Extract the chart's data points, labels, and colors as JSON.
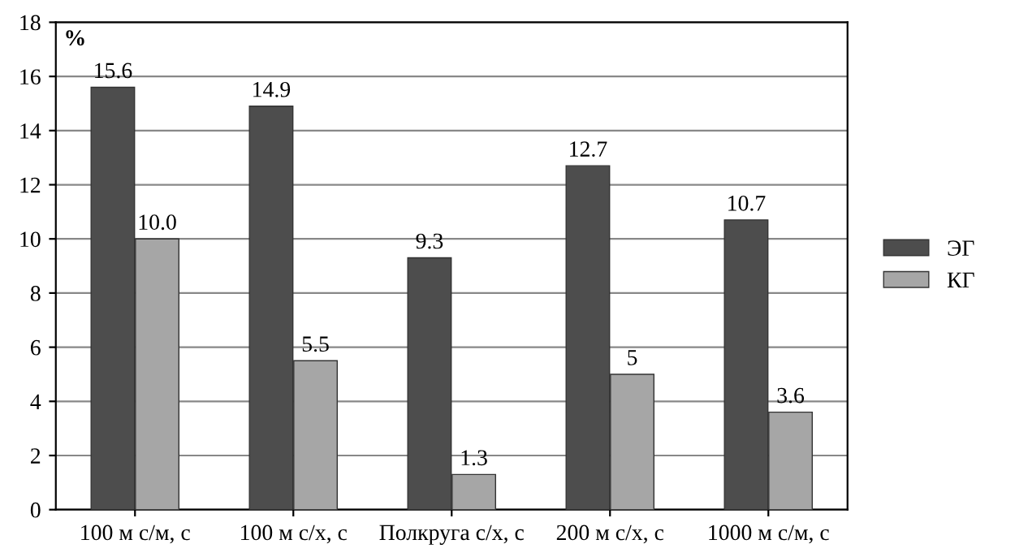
{
  "chart_data": {
    "type": "bar",
    "ylabel": "%",
    "categories": [
      "100 м с/м, с",
      "100 м с/х, с",
      "Полкруга с/х, с",
      "200 м с/х, с",
      "1000 м с/м, с"
    ],
    "series": [
      {
        "name": "ЭГ",
        "color": "#4d4d4d",
        "values": [
          15.6,
          14.9,
          9.3,
          12.7,
          10.7
        ],
        "value_labels": [
          "15.6",
          "14.9",
          "9.3",
          "12.7",
          "10.7"
        ]
      },
      {
        "name": "КГ",
        "color": "#a6a6a6",
        "values": [
          10.0,
          5.5,
          1.3,
          5,
          3.6
        ],
        "value_labels": [
          "10.0",
          "5.5",
          "1.3",
          "5",
          "3.6"
        ]
      }
    ],
    "ylim": [
      0,
      18
    ],
    "yticks": [
      0,
      2,
      4,
      6,
      8,
      10,
      12,
      14,
      16,
      18
    ],
    "grid": "y",
    "legend": "right"
  }
}
